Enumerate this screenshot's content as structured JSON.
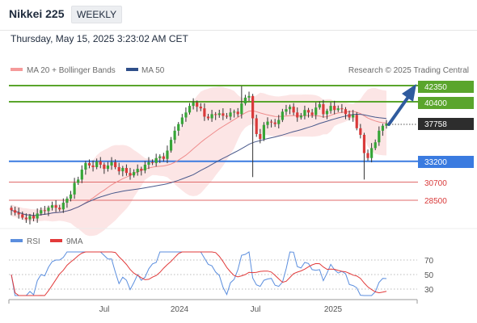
{
  "header": {
    "title": "Nikkei 225",
    "period": "WEEKLY",
    "datetime": "Thursday, May 15, 2025 3:23:02 AM CET"
  },
  "legend": {
    "ma20_label": "MA 20 + Bollinger Bands",
    "ma50_label": "MA 50",
    "source": "Research © 2025 Trading Central",
    "rsi_label": "RSI",
    "rsi_ma_label": "9MA"
  },
  "colors": {
    "green_level": "#5aa52c",
    "blue_level": "#3a7be0",
    "red_level": "#e06a6a",
    "candle_up": "#37a537",
    "candle_down": "#d93a3a",
    "bollinger_fill": "#fbdcdc",
    "ma20": "#ef8c8c",
    "ma50": "#4a5a8c",
    "arrow": "#2f5b9e",
    "rsi": "#5b8ede",
    "rsi_ma": "#e23a3a"
  },
  "chart_data": [
    {
      "type": "candlestick",
      "title": "Nikkei 225",
      "x_tick_labels": [
        "Jul",
        "2024",
        "Jul",
        "2025"
      ],
      "current_price": "37758",
      "levels": [
        {
          "value": "42350",
          "style": "green-line",
          "role": "resistance-target"
        },
        {
          "value": "40400",
          "style": "green-line",
          "role": "resistance"
        },
        {
          "value": "33200",
          "style": "blue-line",
          "role": "pivot"
        },
        {
          "value": "30700",
          "style": "red-line",
          "role": "support"
        },
        {
          "value": "28500",
          "style": "red-line",
          "role": "support"
        }
      ],
      "series": [
        {
          "name": "MA 20 + Bollinger Bands"
        },
        {
          "name": "MA 50"
        }
      ],
      "closes": [
        27300,
        27000,
        26800,
        26400,
        26200,
        26600,
        26300,
        26900,
        27300,
        27200,
        27600,
        27900,
        27600,
        27400,
        28200,
        28700,
        29200,
        30600,
        31000,
        32200,
        33000,
        32700,
        32500,
        33200,
        32800,
        32300,
        32700,
        33100,
        32500,
        32000,
        32400,
        31800,
        31500,
        31900,
        32300,
        32100,
        32800,
        33100,
        33000,
        33600,
        33800,
        33500,
        34500,
        35800,
        36900,
        37700,
        38500,
        39100,
        39900,
        40300,
        39800,
        39600,
        38600,
        38400,
        38900,
        38800,
        39000,
        38700,
        38600,
        39100,
        39200,
        38900,
        40200,
        40900,
        41100,
        38400,
        36500,
        35900,
        37600,
        38000,
        37900,
        37700,
        38200,
        39200,
        39500,
        39800,
        39100,
        38500,
        38700,
        39400,
        39100,
        38800,
        39700,
        40100,
        38900,
        39300,
        39900,
        39400,
        39600,
        39500,
        38900,
        38500,
        38800,
        37200,
        36400,
        34200,
        33600,
        34800,
        35500,
        36900,
        37500,
        37758
      ]
    },
    {
      "type": "line",
      "title": "RSI",
      "y_ticks": [
        70,
        50,
        30
      ],
      "series": [
        {
          "name": "RSI"
        },
        {
          "name": "9MA"
        }
      ]
    }
  ]
}
